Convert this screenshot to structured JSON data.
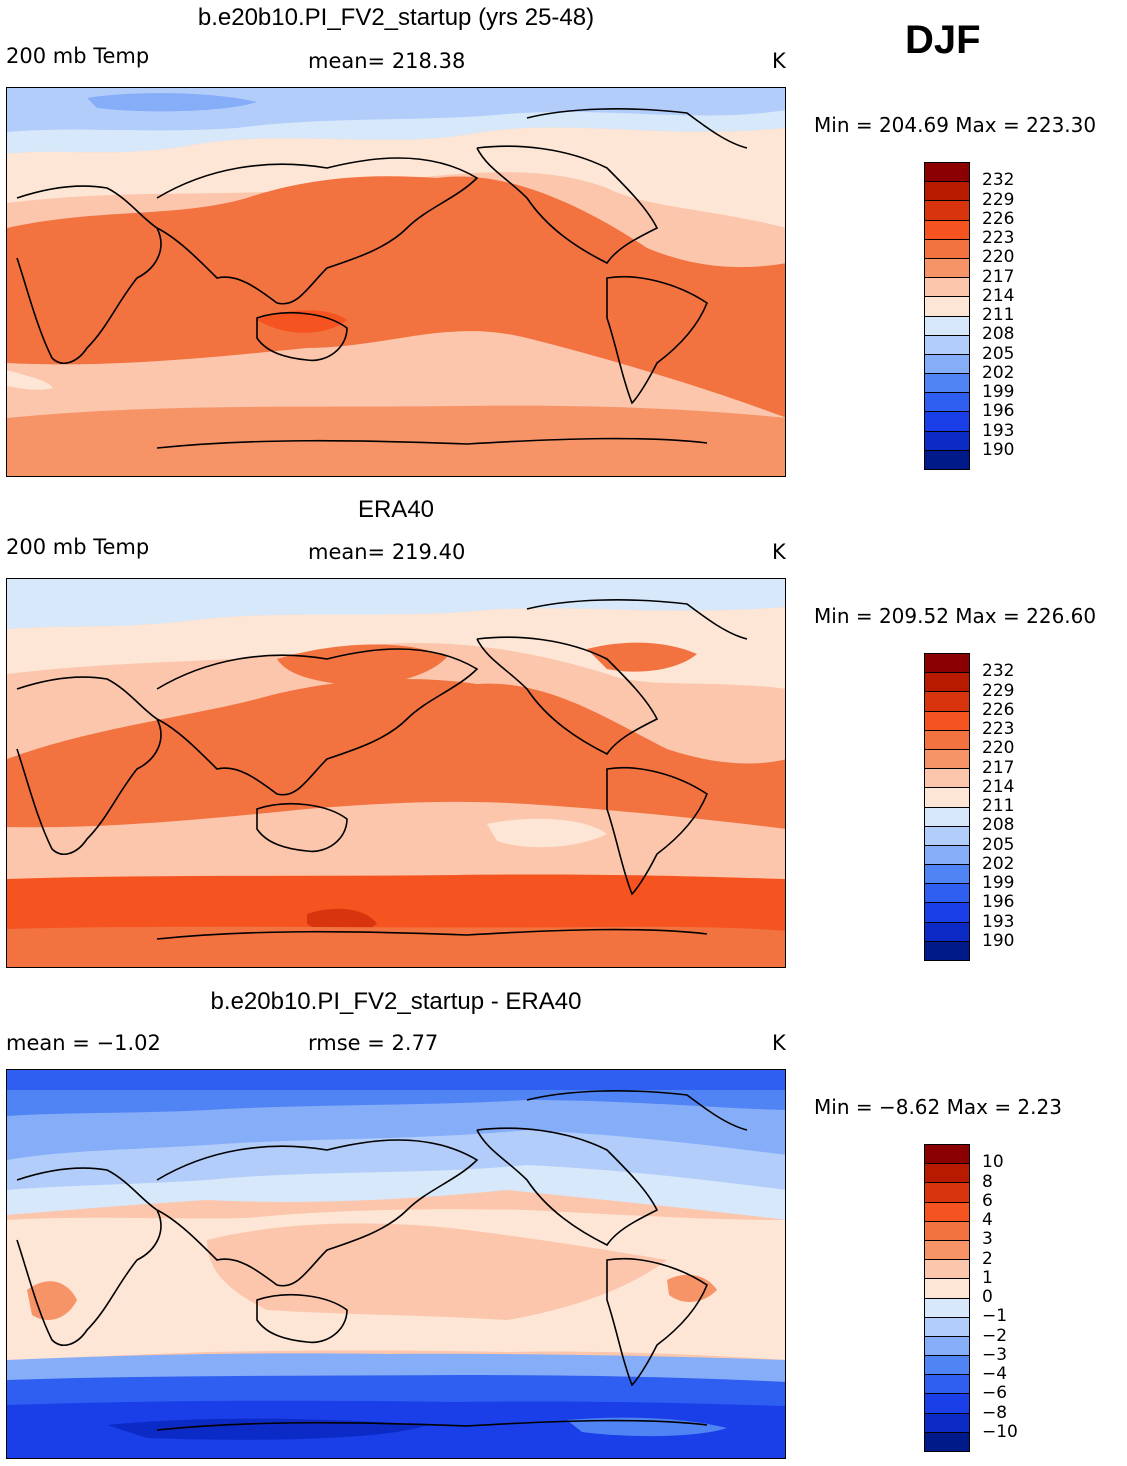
{
  "season": "DJF",
  "colors": {
    "abs_scale": [
      "#8b0000",
      "#b81a00",
      "#d8340e",
      "#f55420",
      "#f27240",
      "#f69468",
      "#fbc6ac",
      "#fde6d6",
      "#d7e8fb",
      "#b3cdfb",
      "#86adf8",
      "#5083f3",
      "#2f5ff1",
      "#1a3fe8",
      "#0c2bc6",
      "#001a8a"
    ],
    "diff_scale": [
      "#8b0000",
      "#b81a00",
      "#d8340e",
      "#f55420",
      "#f27240",
      "#f69468",
      "#fbc6ac",
      "#fde6d6",
      "#d7e8fb",
      "#b3cdfb",
      "#86adf8",
      "#5083f3",
      "#2f5ff1",
      "#1a3fe8",
      "#0c2bc6",
      "#001a8a"
    ]
  },
  "panels": [
    {
      "title": "b.e20b10.PI_FV2_startup (yrs 25-48)",
      "left_label": "200 mb Temp",
      "center_label": "mean= 218.38",
      "units": "K",
      "minmax": "Min = 204.69 Max = 223.30",
      "ticks": [
        "232",
        "229",
        "226",
        "223",
        "220",
        "217",
        "214",
        "211",
        "208",
        "205",
        "202",
        "199",
        "196",
        "193",
        "190"
      ]
    },
    {
      "title": "ERA40",
      "left_label": "200 mb Temp",
      "center_label": "mean= 219.40",
      "units": "K",
      "minmax": "Min = 209.52 Max = 226.60",
      "ticks": [
        "232",
        "229",
        "226",
        "223",
        "220",
        "217",
        "214",
        "211",
        "208",
        "205",
        "202",
        "199",
        "196",
        "193",
        "190"
      ]
    },
    {
      "title": "b.e20b10.PI_FV2_startup - ERA40",
      "left_label": "mean =   −1.02",
      "center_label": "rmse =    2.77",
      "units": "K",
      "minmax": "Min =   −8.62 Max =    2.23",
      "ticks": [
        "10",
        "8",
        "6",
        "4",
        "3",
        "2",
        "1",
        "0",
        "−1",
        "−2",
        "−3",
        "−4",
        "−6",
        "−8",
        "−10"
      ]
    }
  ]
}
